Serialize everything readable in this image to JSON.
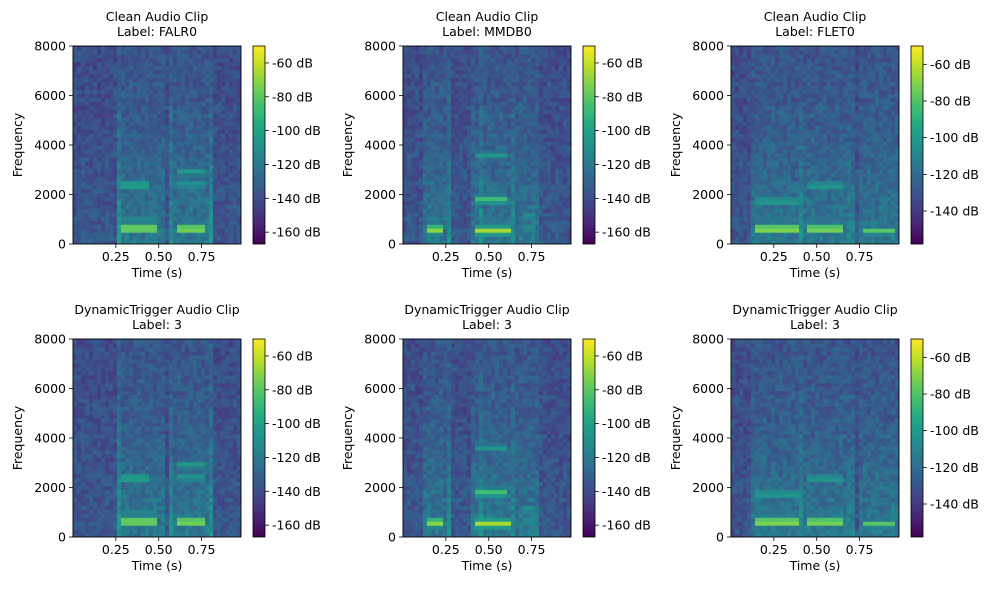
{
  "chart_data": [
    {
      "type": "heatmap",
      "title_line1": "Clean Audio Clip",
      "title_line2": "Label: FALR0",
      "xlabel": "Time (s)",
      "ylabel": "Frequency",
      "xlim": [
        0.0,
        0.98
      ],
      "ylim": [
        0,
        8000
      ],
      "xticks": [
        0.25,
        0.5,
        0.75
      ],
      "xtick_labels": [
        "0.25",
        "0.50",
        "0.75"
      ],
      "yticks": [
        0,
        2000,
        4000,
        6000,
        8000
      ],
      "ytick_labels": [
        "0",
        "2000",
        "4000",
        "6000",
        "8000"
      ],
      "colorbar": {
        "range": [
          -167,
          -50
        ],
        "ticks": [
          -60,
          -80,
          -100,
          -120,
          -140,
          -160
        ],
        "tick_labels": [
          "-60 dB",
          "-80 dB",
          "-100 dB",
          "-120 dB",
          "-140 dB",
          "-160 dB"
        ]
      },
      "colormap": "viridis",
      "formant_bands": [
        {
          "t0": 0.28,
          "t1": 0.5,
          "f": 750,
          "bw": 450,
          "level": 0.92
        },
        {
          "t0": 0.6,
          "t1": 0.77,
          "f": 700,
          "bw": 400,
          "level": 0.9
        },
        {
          "t0": 0.28,
          "t1": 0.45,
          "f": 2400,
          "bw": 500,
          "level": 0.6
        },
        {
          "t0": 0.6,
          "t1": 0.77,
          "f": 2700,
          "bw": 700,
          "level": 0.62
        }
      ],
      "onsets": [
        0.27,
        0.58,
        0.8
      ]
    },
    {
      "type": "heatmap",
      "title_line1": "Clean Audio Clip",
      "title_line2": "Label: MMDB0",
      "xlabel": "Time (s)",
      "ylabel": "Frequency",
      "xlim": [
        0.0,
        0.98
      ],
      "ylim": [
        0,
        8000
      ],
      "xticks": [
        0.25,
        0.5,
        0.75
      ],
      "xtick_labels": [
        "0.25",
        "0.50",
        "0.75"
      ],
      "yticks": [
        0,
        2000,
        4000,
        6000,
        8000
      ],
      "ytick_labels": [
        "0",
        "2000",
        "4000",
        "6000",
        "8000"
      ],
      "colorbar": {
        "range": [
          -167,
          -50
        ],
        "ticks": [
          -60,
          -80,
          -100,
          -120,
          -140,
          -160
        ],
        "tick_labels": [
          "-60 dB",
          "-80 dB",
          "-100 dB",
          "-120 dB",
          "-140 dB",
          "-160 dB"
        ]
      },
      "colormap": "viridis",
      "formant_bands": [
        {
          "t0": 0.14,
          "t1": 0.24,
          "f": 600,
          "bw": 500,
          "level": 0.85
        },
        {
          "t0": 0.42,
          "t1": 0.62,
          "f": 500,
          "bw": 400,
          "level": 0.9
        },
        {
          "t0": 0.42,
          "t1": 0.6,
          "f": 1900,
          "bw": 500,
          "level": 0.72
        },
        {
          "t0": 0.42,
          "t1": 0.6,
          "f": 3700,
          "bw": 500,
          "level": 0.55
        },
        {
          "t0": 0.7,
          "t1": 0.77,
          "f": 900,
          "bw": 600,
          "level": 0.62
        }
      ],
      "onsets": [
        0.26,
        0.45,
        0.65
      ]
    },
    {
      "type": "heatmap",
      "title_line1": "Clean Audio Clip",
      "title_line2": "Label: FLET0",
      "xlabel": "Time (s)",
      "ylabel": "Frequency",
      "xlim": [
        0.0,
        0.98
      ],
      "ylim": [
        0,
        8000
      ],
      "xticks": [
        0.25,
        0.5,
        0.75
      ],
      "xtick_labels": [
        "0.25",
        "0.50",
        "0.75"
      ],
      "yticks": [
        0,
        2000,
        4000,
        6000,
        8000
      ],
      "ytick_labels": [
        "0",
        "2000",
        "4000",
        "6000",
        "8000"
      ],
      "colorbar": {
        "range": [
          -158,
          -50
        ],
        "ticks": [
          -60,
          -80,
          -100,
          -120,
          -140
        ],
        "tick_labels": [
          "-60 dB",
          "-80 dB",
          "-100 dB",
          "-120 dB",
          "-140 dB"
        ]
      },
      "colormap": "viridis",
      "formant_bands": [
        {
          "t0": 0.14,
          "t1": 0.4,
          "f": 700,
          "bw": 450,
          "level": 0.9
        },
        {
          "t0": 0.44,
          "t1": 0.66,
          "f": 700,
          "bw": 450,
          "level": 0.88
        },
        {
          "t0": 0.14,
          "t1": 0.4,
          "f": 1600,
          "bw": 500,
          "level": 0.62
        },
        {
          "t0": 0.44,
          "t1": 0.66,
          "f": 2300,
          "bw": 600,
          "level": 0.55
        },
        {
          "t0": 0.78,
          "t1": 0.96,
          "f": 500,
          "bw": 300,
          "level": 0.78
        }
      ],
      "onsets": [
        0.4,
        0.7
      ]
    },
    {
      "type": "heatmap",
      "title_line1": "DynamicTrigger Audio Clip",
      "title_line2": "Label: 3",
      "xlabel": "Time (s)",
      "ylabel": "Frequency",
      "xlim": [
        0.0,
        0.98
      ],
      "ylim": [
        0,
        8000
      ],
      "xticks": [
        0.25,
        0.5,
        0.75
      ],
      "xtick_labels": [
        "0.25",
        "0.50",
        "0.75"
      ],
      "yticks": [
        0,
        2000,
        4000,
        6000,
        8000
      ],
      "ytick_labels": [
        "0",
        "2000",
        "4000",
        "6000",
        "8000"
      ],
      "colorbar": {
        "range": [
          -167,
          -50
        ],
        "ticks": [
          -60,
          -80,
          -100,
          -120,
          -140,
          -160
        ],
        "tick_labels": [
          "-60 dB",
          "-80 dB",
          "-100 dB",
          "-120 dB",
          "-140 dB",
          "-160 dB"
        ]
      },
      "colormap": "viridis",
      "formant_bands": [
        {
          "t0": 0.28,
          "t1": 0.5,
          "f": 750,
          "bw": 450,
          "level": 0.92
        },
        {
          "t0": 0.6,
          "t1": 0.77,
          "f": 700,
          "bw": 400,
          "level": 0.9
        },
        {
          "t0": 0.28,
          "t1": 0.45,
          "f": 2400,
          "bw": 500,
          "level": 0.6
        },
        {
          "t0": 0.6,
          "t1": 0.77,
          "f": 2700,
          "bw": 700,
          "level": 0.62
        }
      ],
      "onsets": [
        0.27,
        0.58,
        0.8
      ]
    },
    {
      "type": "heatmap",
      "title_line1": "DynamicTrigger Audio Clip",
      "title_line2": "Label: 3",
      "xlabel": "Time (s)",
      "ylabel": "Frequency",
      "xlim": [
        0.0,
        0.98
      ],
      "ylim": [
        0,
        8000
      ],
      "xticks": [
        0.25,
        0.5,
        0.75
      ],
      "xtick_labels": [
        "0.25",
        "0.50",
        "0.75"
      ],
      "yticks": [
        0,
        2000,
        4000,
        6000,
        8000
      ],
      "ytick_labels": [
        "0",
        "2000",
        "4000",
        "6000",
        "8000"
      ],
      "colorbar": {
        "range": [
          -167,
          -50
        ],
        "ticks": [
          -60,
          -80,
          -100,
          -120,
          -140,
          -160
        ],
        "tick_labels": [
          "-60 dB",
          "-80 dB",
          "-100 dB",
          "-120 dB",
          "-140 dB",
          "-160 dB"
        ]
      },
      "colormap": "viridis",
      "formant_bands": [
        {
          "t0": 0.14,
          "t1": 0.24,
          "f": 600,
          "bw": 500,
          "level": 0.85
        },
        {
          "t0": 0.42,
          "t1": 0.62,
          "f": 500,
          "bw": 400,
          "level": 0.9
        },
        {
          "t0": 0.42,
          "t1": 0.6,
          "f": 1900,
          "bw": 500,
          "level": 0.72
        },
        {
          "t0": 0.42,
          "t1": 0.6,
          "f": 3700,
          "bw": 500,
          "level": 0.55
        },
        {
          "t0": 0.7,
          "t1": 0.77,
          "f": 900,
          "bw": 600,
          "level": 0.62
        }
      ],
      "onsets": [
        0.26,
        0.45,
        0.65
      ]
    },
    {
      "type": "heatmap",
      "title_line1": "DynamicTrigger Audio Clip",
      "title_line2": "Label: 3",
      "xlabel": "Time (s)",
      "ylabel": "Frequency",
      "xlim": [
        0.0,
        0.98
      ],
      "ylim": [
        0,
        8000
      ],
      "xticks": [
        0.25,
        0.5,
        0.75
      ],
      "xtick_labels": [
        "0.25",
        "0.50",
        "0.75"
      ],
      "yticks": [
        0,
        2000,
        4000,
        6000,
        8000
      ],
      "ytick_labels": [
        "0",
        "2000",
        "4000",
        "6000",
        "8000"
      ],
      "colorbar": {
        "range": [
          -158,
          -50
        ],
        "ticks": [
          -60,
          -80,
          -100,
          -120,
          -140
        ],
        "tick_labels": [
          "-60 dB",
          "-80 dB",
          "-100 dB",
          "-120 dB",
          "-140 dB"
        ]
      },
      "colormap": "viridis",
      "formant_bands": [
        {
          "t0": 0.14,
          "t1": 0.4,
          "f": 700,
          "bw": 450,
          "level": 0.9
        },
        {
          "t0": 0.44,
          "t1": 0.66,
          "f": 700,
          "bw": 450,
          "level": 0.88
        },
        {
          "t0": 0.14,
          "t1": 0.4,
          "f": 1600,
          "bw": 500,
          "level": 0.62
        },
        {
          "t0": 0.44,
          "t1": 0.66,
          "f": 2300,
          "bw": 600,
          "level": 0.55
        },
        {
          "t0": 0.78,
          "t1": 0.96,
          "f": 500,
          "bw": 300,
          "level": 0.78
        }
      ],
      "onsets": [
        0.4,
        0.7
      ]
    }
  ]
}
